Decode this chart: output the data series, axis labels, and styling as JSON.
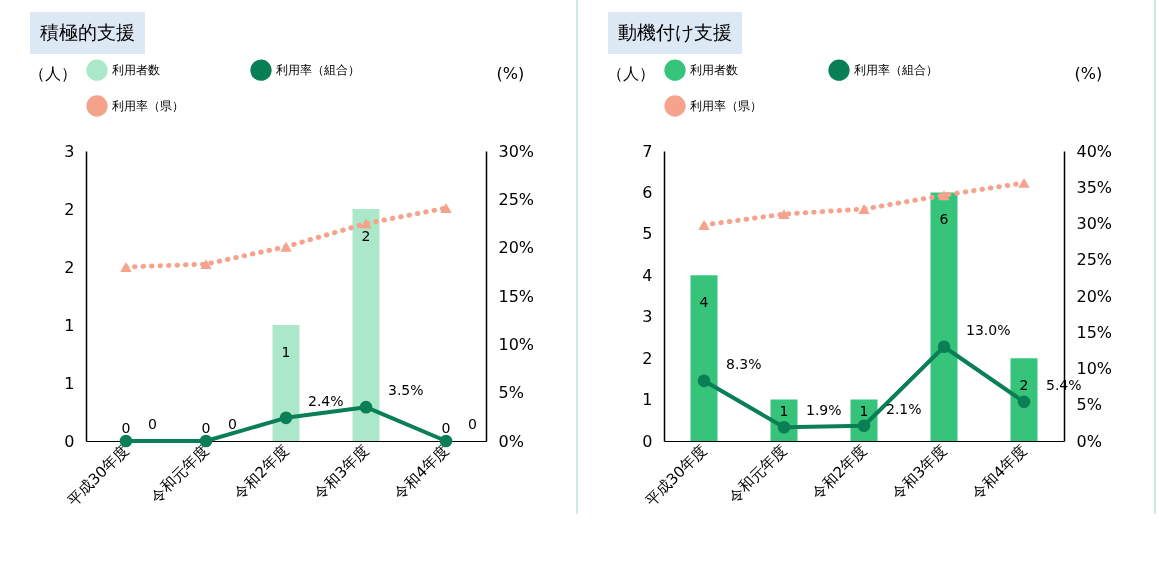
{
  "chart_data": [
    {
      "type": "bar",
      "title": "積極的支援",
      "ylabel": "（人）",
      "y2label": "(%)",
      "categories": [
        "平成30年度",
        "令和元年度",
        "令和2年度",
        "令和3年度",
        "令和4年度"
      ],
      "series": [
        {
          "name": "利用者数",
          "color": "#abe7c9",
          "values": [
            0,
            0,
            1,
            2,
            0
          ],
          "value_labels": [
            "0",
            "0",
            "1",
            "2",
            "0"
          ]
        },
        {
          "name": "利用率（組合）",
          "type": "line",
          "axis": "y2",
          "color": "#0a7f56",
          "marker": "circle",
          "line_style": "solid",
          "values": [
            0,
            0,
            2.4,
            3.5,
            0
          ],
          "value_labels": [
            "0",
            "0",
            "2.4%",
            "3.5%",
            "0"
          ]
        },
        {
          "name": "利用率（県）",
          "type": "line",
          "axis": "y2",
          "color": "#f6a38e",
          "marker": "triangle",
          "line_style": "dotted",
          "values": [
            18.0,
            18.3,
            20.1,
            22.5,
            24.1
          ]
        }
      ],
      "ylim": [
        0,
        2.5
      ],
      "yticks": [
        0,
        {
          "value": 0.5,
          "label": "1"
        },
        1,
        {
          "value": 1.5,
          "label": "2"
        },
        2,
        {
          "value": 2.5,
          "label": "3"
        }
      ],
      "y2lim": [
        0,
        30
      ],
      "y2ticks": [
        {
          "value": 0,
          "label": "0%"
        },
        {
          "value": 5,
          "label": "5%"
        },
        {
          "value": 10,
          "label": "10%"
        },
        {
          "value": 15,
          "label": "15%"
        },
        {
          "value": 20,
          "label": "20%"
        },
        {
          "value": 25,
          "label": "25%"
        },
        {
          "value": 30,
          "label": "30%"
        }
      ],
      "legend": "top",
      "grid": false
    },
    {
      "type": "bar",
      "title": "動機付け支援",
      "ylabel": "（人）",
      "y2label": "(%)",
      "categories": [
        "平成30年度",
        "令和元年度",
        "令和2年度",
        "令和3年度",
        "令和4年度"
      ],
      "series": [
        {
          "name": "利用者数",
          "color": "#36c47b",
          "values": [
            4,
            1,
            1,
            6,
            2
          ],
          "value_labels": [
            "4",
            "1",
            "1",
            "6",
            "2"
          ]
        },
        {
          "name": "利用率（組合）",
          "type": "line",
          "axis": "y2",
          "color": "#0a7f56",
          "marker": "circle",
          "line_style": "solid",
          "values": [
            8.3,
            1.9,
            2.1,
            13.0,
            5.4
          ],
          "value_labels": [
            "8.3%",
            "1.9%",
            "2.1%",
            "13.0%",
            "5.4%"
          ]
        },
        {
          "name": "利用率（県）",
          "type": "line",
          "axis": "y2",
          "color": "#f6a38e",
          "marker": "triangle",
          "line_style": "dotted",
          "values": [
            29.8,
            31.3,
            32.0,
            33.9,
            35.6
          ]
        }
      ],
      "ylim": [
        0,
        7
      ],
      "yticks": [
        0,
        1,
        2,
        3,
        4,
        5,
        6,
        7
      ],
      "y2lim": [
        0,
        40
      ],
      "y2ticks": [
        {
          "value": 0,
          "label": "0%"
        },
        {
          "value": 5,
          "label": "5%"
        },
        {
          "value": 10,
          "label": "10%"
        },
        {
          "value": 15,
          "label": "15%"
        },
        {
          "value": 20,
          "label": "20%"
        },
        {
          "value": 25,
          "label": "25%"
        },
        {
          "value": 30,
          "label": "30%"
        },
        {
          "value": 35,
          "label": "35%"
        },
        {
          "value": 40,
          "label": "40%"
        }
      ],
      "legend": "top",
      "grid": false
    }
  ]
}
